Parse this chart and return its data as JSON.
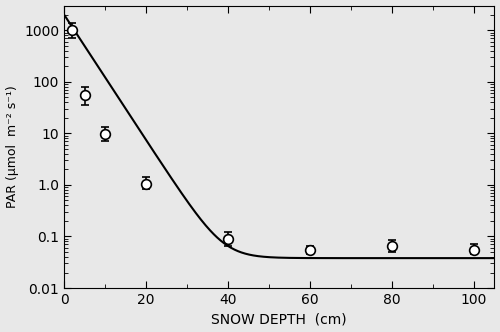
{
  "x": [
    2,
    5,
    10,
    20,
    40,
    60,
    80,
    100
  ],
  "y": [
    1000,
    55,
    9.5,
    1.05,
    0.09,
    0.055,
    0.065,
    0.055
  ],
  "yerr_lower": [
    300,
    20,
    2.5,
    0.2,
    0.025,
    0.01,
    0.015,
    0.01
  ],
  "yerr_upper": [
    400,
    25,
    3.5,
    0.35,
    0.03,
    0.01,
    0.02,
    0.015
  ],
  "xlabel": "SNOW DEPTH  (cm)",
  "ylabel": "PAR (μmol  m⁻² s⁻¹)",
  "xlim": [
    0,
    105
  ],
  "ylim": [
    0.01,
    3000
  ],
  "xticks": [
    0,
    20,
    40,
    60,
    80,
    100
  ],
  "curve_fit_a": 2000,
  "curve_fit_b": 0.28,
  "curve_fit_c": 0.038,
  "face_color": "#e8e8e8",
  "marker_size": 7,
  "marker_color": "white",
  "marker_edge_color": "black",
  "line_color": "black",
  "line_width": 1.5
}
